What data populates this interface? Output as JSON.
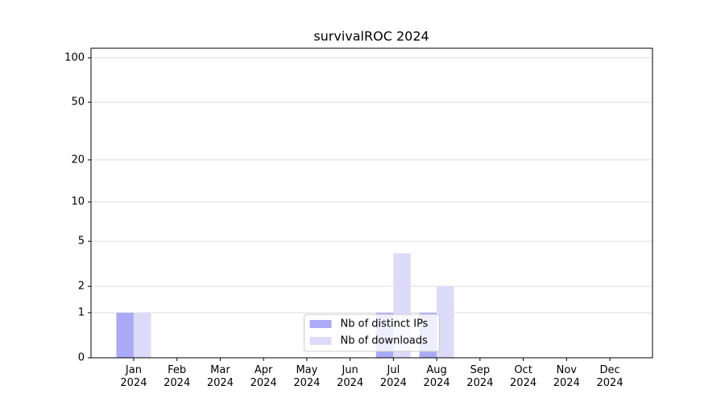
{
  "chart_data": {
    "type": "bar",
    "title": "survivalROC 2024",
    "categories": [
      "Jan\n2024",
      "Feb\n2024",
      "Mar\n2024",
      "Apr\n2024",
      "May\n2024",
      "Jun\n2024",
      "Jul\n2024",
      "Aug\n2024",
      "Sep\n2024",
      "Oct\n2024",
      "Nov\n2024",
      "Dec\n2024"
    ],
    "series": [
      {
        "name": "Nb of distinct IPs",
        "color": "#aaaaf8",
        "values": [
          1,
          0,
          0,
          0,
          0,
          0,
          1,
          1,
          0,
          0,
          0,
          0
        ]
      },
      {
        "name": "Nb of downloads",
        "color": "#dcdcfa",
        "values": [
          1,
          0,
          0,
          0,
          0,
          0,
          4,
          2,
          0,
          0,
          0,
          0
        ]
      }
    ],
    "yscale": "log1p",
    "ylim": [
      0,
      116
    ],
    "yticks": [
      0,
      1,
      2,
      5,
      10,
      20,
      50,
      100
    ],
    "grid": true,
    "legend": "lower center"
  }
}
